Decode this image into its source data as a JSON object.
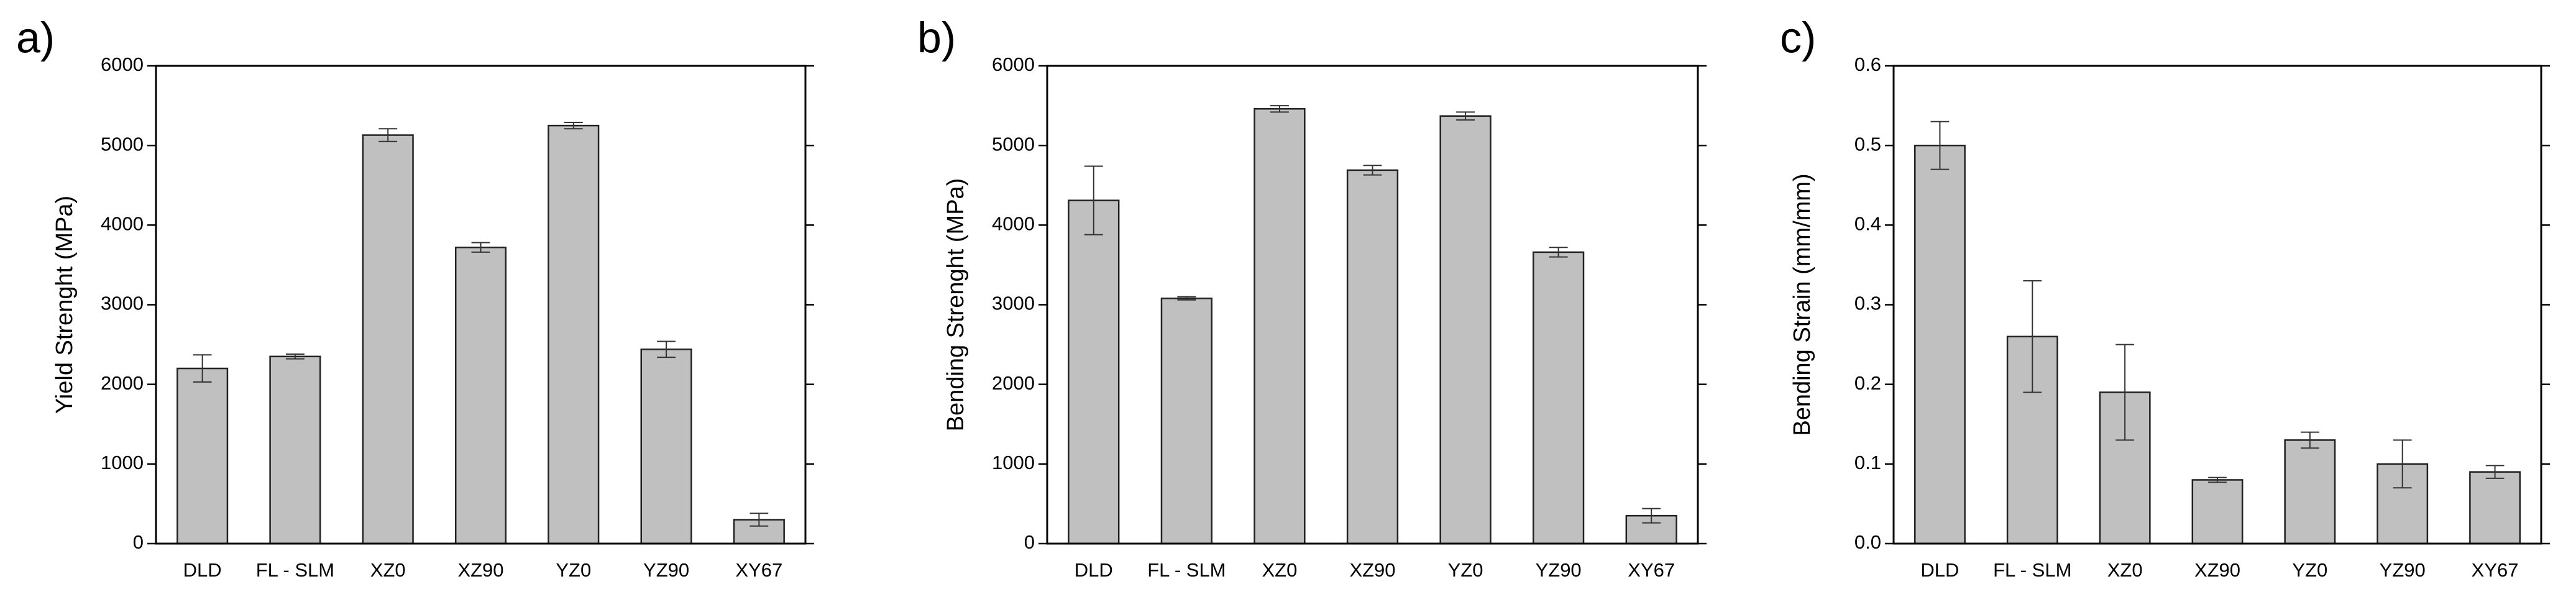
{
  "chart_data": [
    {
      "type": "bar",
      "panel_label": "a)",
      "y_label": "Yield Strenght (MPa)",
      "categories": [
        "DLD",
        "FL - SLM",
        "XZ0",
        "XZ90",
        "YZ0",
        "YZ90",
        "XY67"
      ],
      "values": [
        2200,
        2350,
        5130,
        3720,
        5250,
        2440,
        300
      ],
      "errors": [
        170,
        30,
        80,
        60,
        40,
        100,
        80
      ],
      "color": "#c0c0c0",
      "ylim": [
        0,
        6000
      ],
      "yticks": [
        0,
        1000,
        2000,
        3000,
        4000,
        5000,
        6000
      ]
    },
    {
      "type": "bar",
      "panel_label": "b)",
      "y_label": "Bending Strenght (MPa)",
      "categories": [
        "DLD",
        "FL - SLM",
        "XZ0",
        "XZ90",
        "YZ0",
        "YZ90",
        "XY67"
      ],
      "values": [
        4310,
        3080,
        5460,
        4690,
        5370,
        3660,
        350
      ],
      "errors": [
        430,
        20,
        40,
        60,
        50,
        60,
        90
      ],
      "color": "#c0c0c0",
      "ylim": [
        0,
        6000
      ],
      "yticks": [
        0,
        1000,
        2000,
        3000,
        4000,
        5000,
        6000
      ]
    },
    {
      "type": "bar",
      "panel_label": "c)",
      "y_label": "Bending Strain (mm/mm)",
      "categories": [
        "DLD",
        "FL - SLM",
        "XZ0",
        "XZ90",
        "YZ0",
        "YZ90",
        "XY67"
      ],
      "values": [
        0.5,
        0.26,
        0.19,
        0.08,
        0.13,
        0.1,
        0.09
      ],
      "errors": [
        0.03,
        0.07,
        0.06,
        0.003,
        0.01,
        0.03,
        0.008
      ],
      "color": "#c0c0c0",
      "ylim": [
        0,
        0.6
      ],
      "yticks": [
        {
          "value": 0,
          "label": "0.0"
        },
        0.1,
        0.2,
        0.3,
        0.4,
        0.5,
        0.6
      ]
    }
  ]
}
